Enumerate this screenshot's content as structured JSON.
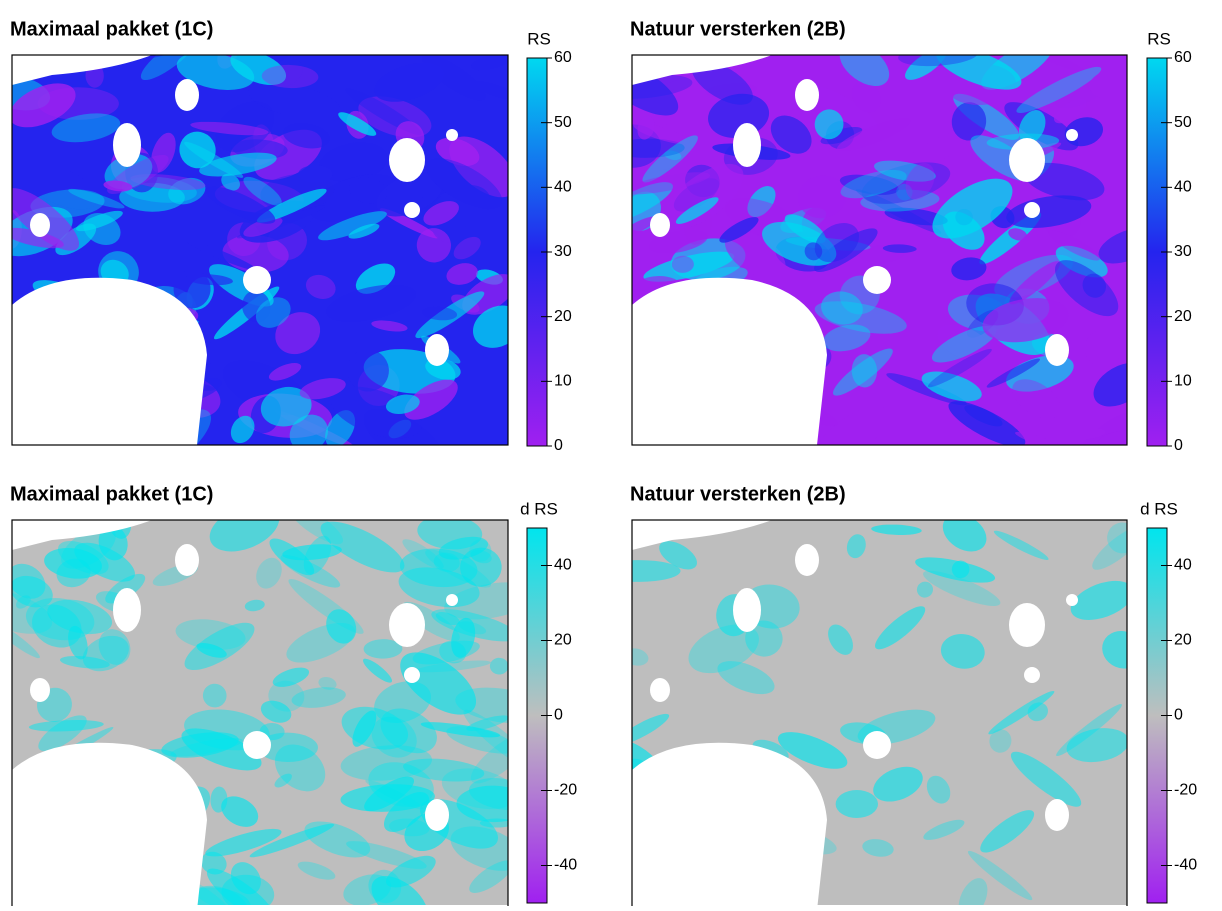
{
  "panels": [
    {
      "title": "Maximaal pakket (1C)",
      "legend_title": "RS",
      "colorbar": {
        "lim": [
          0,
          60
        ],
        "ticks": [
          0,
          10,
          20,
          30,
          40,
          50,
          60
        ],
        "colors": [
          "#a020f0",
          "#2424ee",
          "#00d8f0"
        ]
      }
    },
    {
      "title": "Natuur versterken (2B)",
      "legend_title": "RS",
      "colorbar": {
        "lim": [
          0,
          60
        ],
        "ticks": [
          0,
          10,
          20,
          30,
          40,
          50,
          60
        ],
        "colors": [
          "#a020f0",
          "#2424ee",
          "#00d8f0"
        ]
      }
    },
    {
      "title": "Maximaal pakket (1C)",
      "legend_title": "d RS",
      "colorbar": {
        "lim": [
          -50,
          50
        ],
        "ticks": [
          -40,
          -20,
          0,
          20,
          40
        ],
        "colors": [
          "#a020f0",
          "#bebebe",
          "#00e5ee"
        ]
      }
    },
    {
      "title": "Natuur versterken (2B)",
      "legend_title": "d RS",
      "colorbar": {
        "lim": [
          -50,
          50
        ],
        "ticks": [
          -40,
          -20,
          0,
          20,
          40
        ],
        "colors": [
          "#a020f0",
          "#bebebe",
          "#00e5ee"
        ]
      }
    }
  ]
}
